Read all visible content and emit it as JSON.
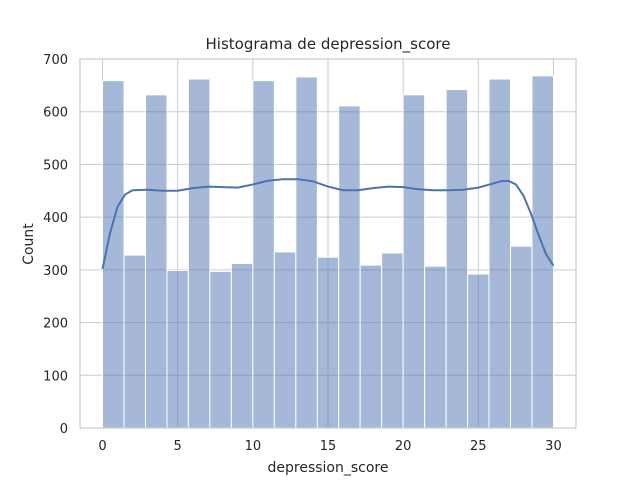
{
  "chart_data": {
    "type": "bar",
    "title": "Histograma de depression_score",
    "xlabel": "depression_score",
    "ylabel": "Count",
    "xlim": [
      -1.5,
      31.5
    ],
    "ylim": [
      0,
      700
    ],
    "xticks": [
      0,
      5,
      10,
      15,
      20,
      25,
      30
    ],
    "yticks": [
      0,
      100,
      200,
      300,
      400,
      500,
      600,
      700
    ],
    "grid": true,
    "bin_edges": [
      0,
      1.43,
      2.86,
      4.29,
      5.71,
      7.14,
      8.57,
      10,
      11.43,
      12.86,
      14.29,
      15.71,
      17.14,
      18.57,
      20,
      21.43,
      22.86,
      24.29,
      25.71,
      27.14,
      28.57,
      30
    ],
    "counts": [
      659,
      328,
      632,
      299,
      662,
      297,
      312,
      659,
      334,
      666,
      324,
      611,
      309,
      332,
      632,
      307,
      642,
      292,
      662,
      345,
      668
    ],
    "kde": {
      "x": [
        0,
        0.5,
        1,
        1.5,
        2,
        3,
        4,
        5,
        6,
        7,
        8,
        9,
        10,
        11,
        12,
        13,
        14,
        15,
        16,
        17,
        18,
        19,
        20,
        21,
        22,
        23,
        24,
        25,
        26,
        26.5,
        27,
        27.5,
        28,
        28.5,
        29,
        29.5,
        30
      ],
      "y": [
        302,
        370,
        420,
        443,
        451,
        452,
        450,
        450,
        455,
        458,
        457,
        456,
        462,
        469,
        472,
        472,
        468,
        458,
        451,
        451,
        455,
        458,
        457,
        453,
        451,
        451,
        452,
        456,
        464,
        468,
        469,
        462,
        441,
        407,
        367,
        330,
        308
      ]
    },
    "colors": {
      "bar": "#4c72b0",
      "kde": "#4c72b0",
      "grid": "#cccccc"
    }
  }
}
